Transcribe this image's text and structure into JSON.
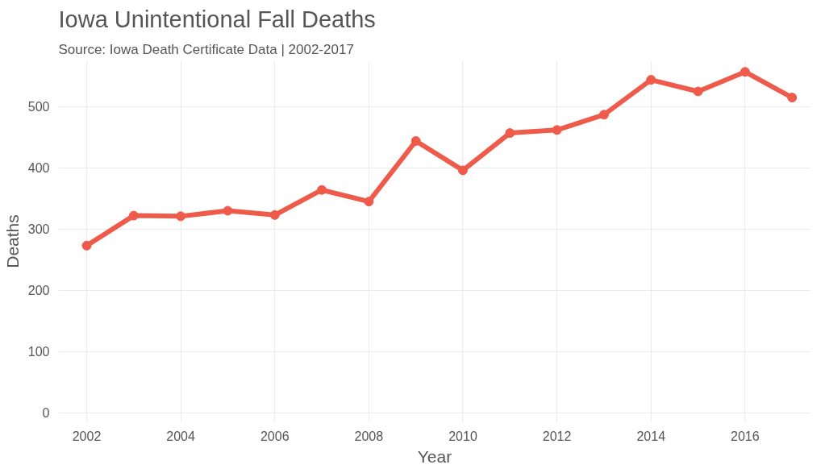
{
  "chart_data": {
    "type": "line",
    "title": "Iowa Unintentional Fall Deaths",
    "subtitle": "Source: Iowa Death Certificate Data | 2002-2017",
    "xlabel": "Year",
    "ylabel": "Deaths",
    "x": [
      2002,
      2003,
      2004,
      2005,
      2006,
      2007,
      2008,
      2009,
      2010,
      2011,
      2012,
      2013,
      2014,
      2015,
      2016,
      2017
    ],
    "series": [
      {
        "color": "#ef5b4a",
        "values": [
          273,
          322,
          321,
          330,
          323,
          364,
          345,
          444,
          396,
          457,
          462,
          487,
          544,
          525,
          557,
          515
        ]
      }
    ],
    "xlim": [
      2001.4,
      2017.4
    ],
    "xticks": [
      2002,
      2004,
      2006,
      2008,
      2010,
      2012,
      2014,
      2016
    ],
    "ylim": [
      -15,
      575
    ],
    "yticks": [
      0,
      100,
      200,
      300,
      400,
      500
    ],
    "grid": true,
    "marker": "circle",
    "line_style": "solid"
  }
}
